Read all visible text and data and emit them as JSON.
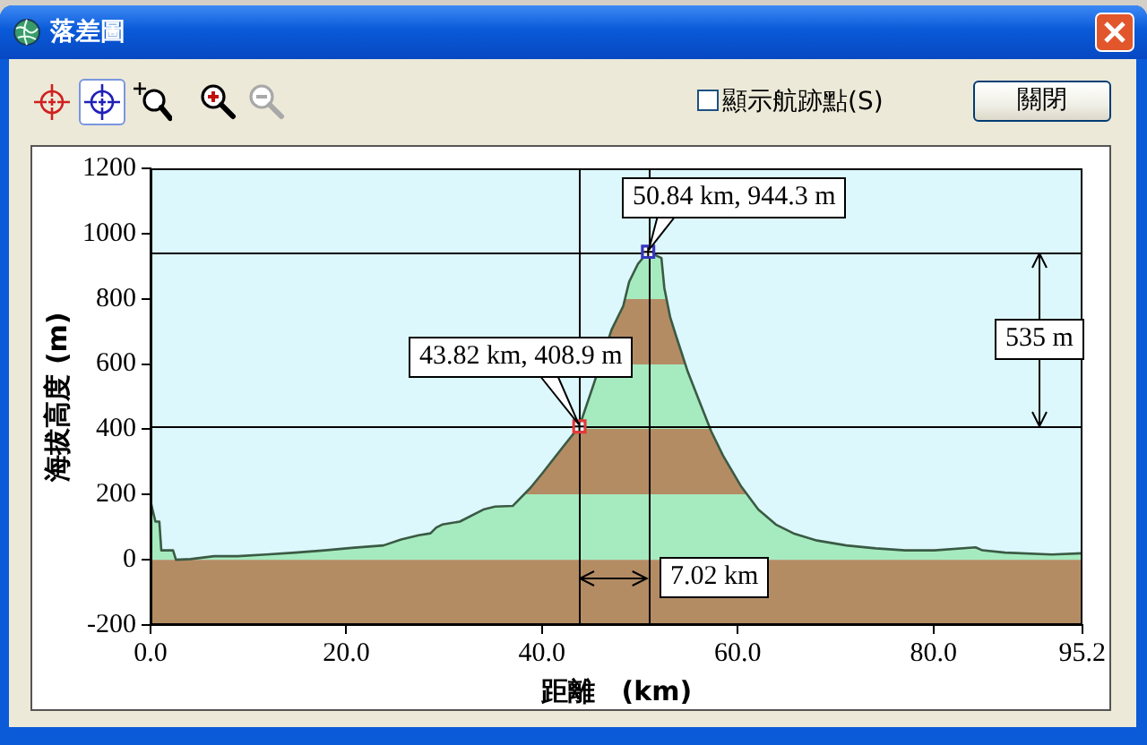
{
  "chart_data": {
    "type": "area",
    "title": "落差圖",
    "xlabel": "距離　(km)",
    "ylabel": "海拔高度 (m)",
    "xlim": [
      0,
      95.2
    ],
    "ylim": [
      -200,
      1200
    ],
    "xticks": [
      {
        "value": 0,
        "label": "0.0"
      },
      {
        "value": 20,
        "label": "20.0"
      },
      {
        "value": 40,
        "label": "40.0"
      },
      {
        "value": 60,
        "label": "60.0"
      },
      {
        "value": 80,
        "label": "80.0"
      },
      95.2
    ],
    "yticks": [
      -200,
      0,
      200,
      400,
      600,
      800,
      1000,
      1200
    ],
    "grid": false,
    "legend": false,
    "series": [
      {
        "color": "#3a5a44",
        "x": [
          0,
          0.2,
          0.5,
          0.9,
          1.1,
          2.3,
          2.6,
          4.1,
          6.5,
          8.9,
          11.8,
          14.8,
          17.8,
          20.8,
          23.8,
          25.6,
          27.4,
          28.6,
          29.2,
          29.8,
          31.6,
          34.0,
          35.2,
          37.0,
          38.8,
          40.0,
          42.4,
          43.82,
          45.3,
          47.1,
          48.3,
          48.9,
          49.8,
          50.84,
          52.2,
          52.5,
          53.1,
          53.7,
          54.9,
          56.1,
          57.3,
          58.5,
          60.3,
          62.1,
          63.9,
          65.7,
          68.1,
          71.1,
          74.1,
          77.1,
          80.1,
          84.3,
          85.0,
          87.3,
          92.1,
          95.2
        ],
        "values": [
          180,
          154,
          117,
          117,
          29,
          29,
          0,
          2,
          11,
          11,
          16,
          22,
          29,
          37,
          44,
          62,
          75,
          81,
          99,
          108,
          117,
          154,
          163,
          165,
          220,
          264,
          356,
          408.9,
          540,
          705,
          778,
          852,
          907,
          944.3,
          925,
          833,
          743,
          686,
          576,
          484,
          393,
          319,
          227,
          154,
          108,
          81,
          59,
          44,
          35,
          29,
          29,
          38,
          29,
          22,
          16,
          20
        ]
      },
      {
        "type": "scatter",
        "marker": "square",
        "colors": [
          "#e03a3a",
          "#3636c0"
        ],
        "x": [
          43.82,
          50.84
        ],
        "values": [
          408.9,
          944.3
        ]
      }
    ],
    "bands": [
      {
        "axis": "y",
        "from": -200,
        "to": 0,
        "color": "#b48c64"
      }
    ],
    "ref_lines": [
      {
        "axis": "x",
        "value": 43.82,
        "color": "#000000"
      },
      {
        "axis": "x",
        "value": 50.84,
        "color": "#000000"
      },
      {
        "axis": "y",
        "value": 408.9,
        "color": "#000000"
      },
      {
        "axis": "y",
        "value": 944.3,
        "color": "#000000"
      }
    ],
    "annotations": [
      {
        "text": "43.82 km, 408.9 m",
        "x": 43.82,
        "y": 408.9
      },
      {
        "text": "50.84 km, 944.3 m",
        "x": 50.84,
        "y": 944.3
      },
      "535 m",
      "7.02 km",
      "顯示航跡點(S)",
      "關閉"
    ]
  }
}
